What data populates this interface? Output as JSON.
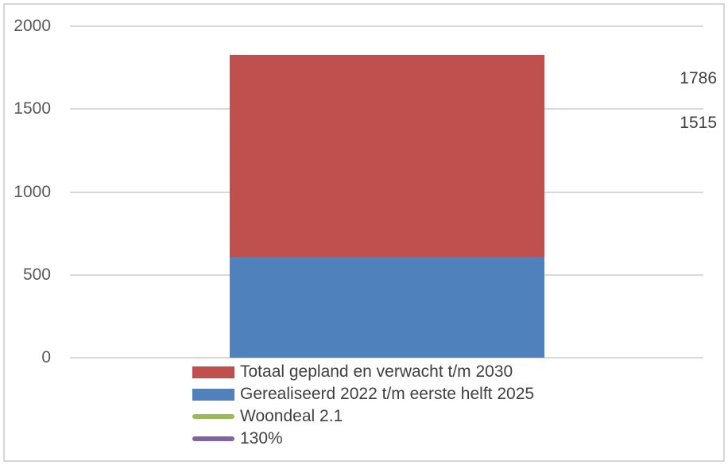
{
  "chart_data": {
    "type": "bar",
    "subtype": "stacked-column-with-reference-lines",
    "title": "",
    "xlabel": "",
    "ylabel": "",
    "categories": [
      ""
    ],
    "series": [
      {
        "name": "Totaal gepland en verwacht t/m 2030",
        "role": "bar-segment-top",
        "color": "#C0504D",
        "value": 1218
      },
      {
        "name": "Gerealiseerd 2022 t/m eerste helft 2025",
        "role": "bar-segment-bottom",
        "color": "#4F81BD",
        "value": 609
      },
      {
        "name": "Woondeal 2.1",
        "role": "reference-line",
        "color": "#9BBB59",
        "value": 1515,
        "data_label": "1515"
      },
      {
        "name": "130%",
        "role": "reference-line",
        "color": "#8064A2",
        "value": 1786,
        "data_label": "1786"
      }
    ],
    "stack_total": 1827,
    "ylim": [
      0,
      2000
    ],
    "yticks": [
      0,
      500,
      1000,
      1500,
      2000
    ],
    "grid": true,
    "legend_position": "bottom-left"
  },
  "colors": {
    "background": "#FFFFFF",
    "chart_border": "#D6D6D6",
    "gridline": "#D9D9D9",
    "axis_text": "#595959",
    "legend_text": "#404040",
    "bar_red": "#C0504D",
    "bar_blue": "#4F81BD",
    "line_green": "#9BBB59",
    "line_purple": "#8064A2"
  }
}
